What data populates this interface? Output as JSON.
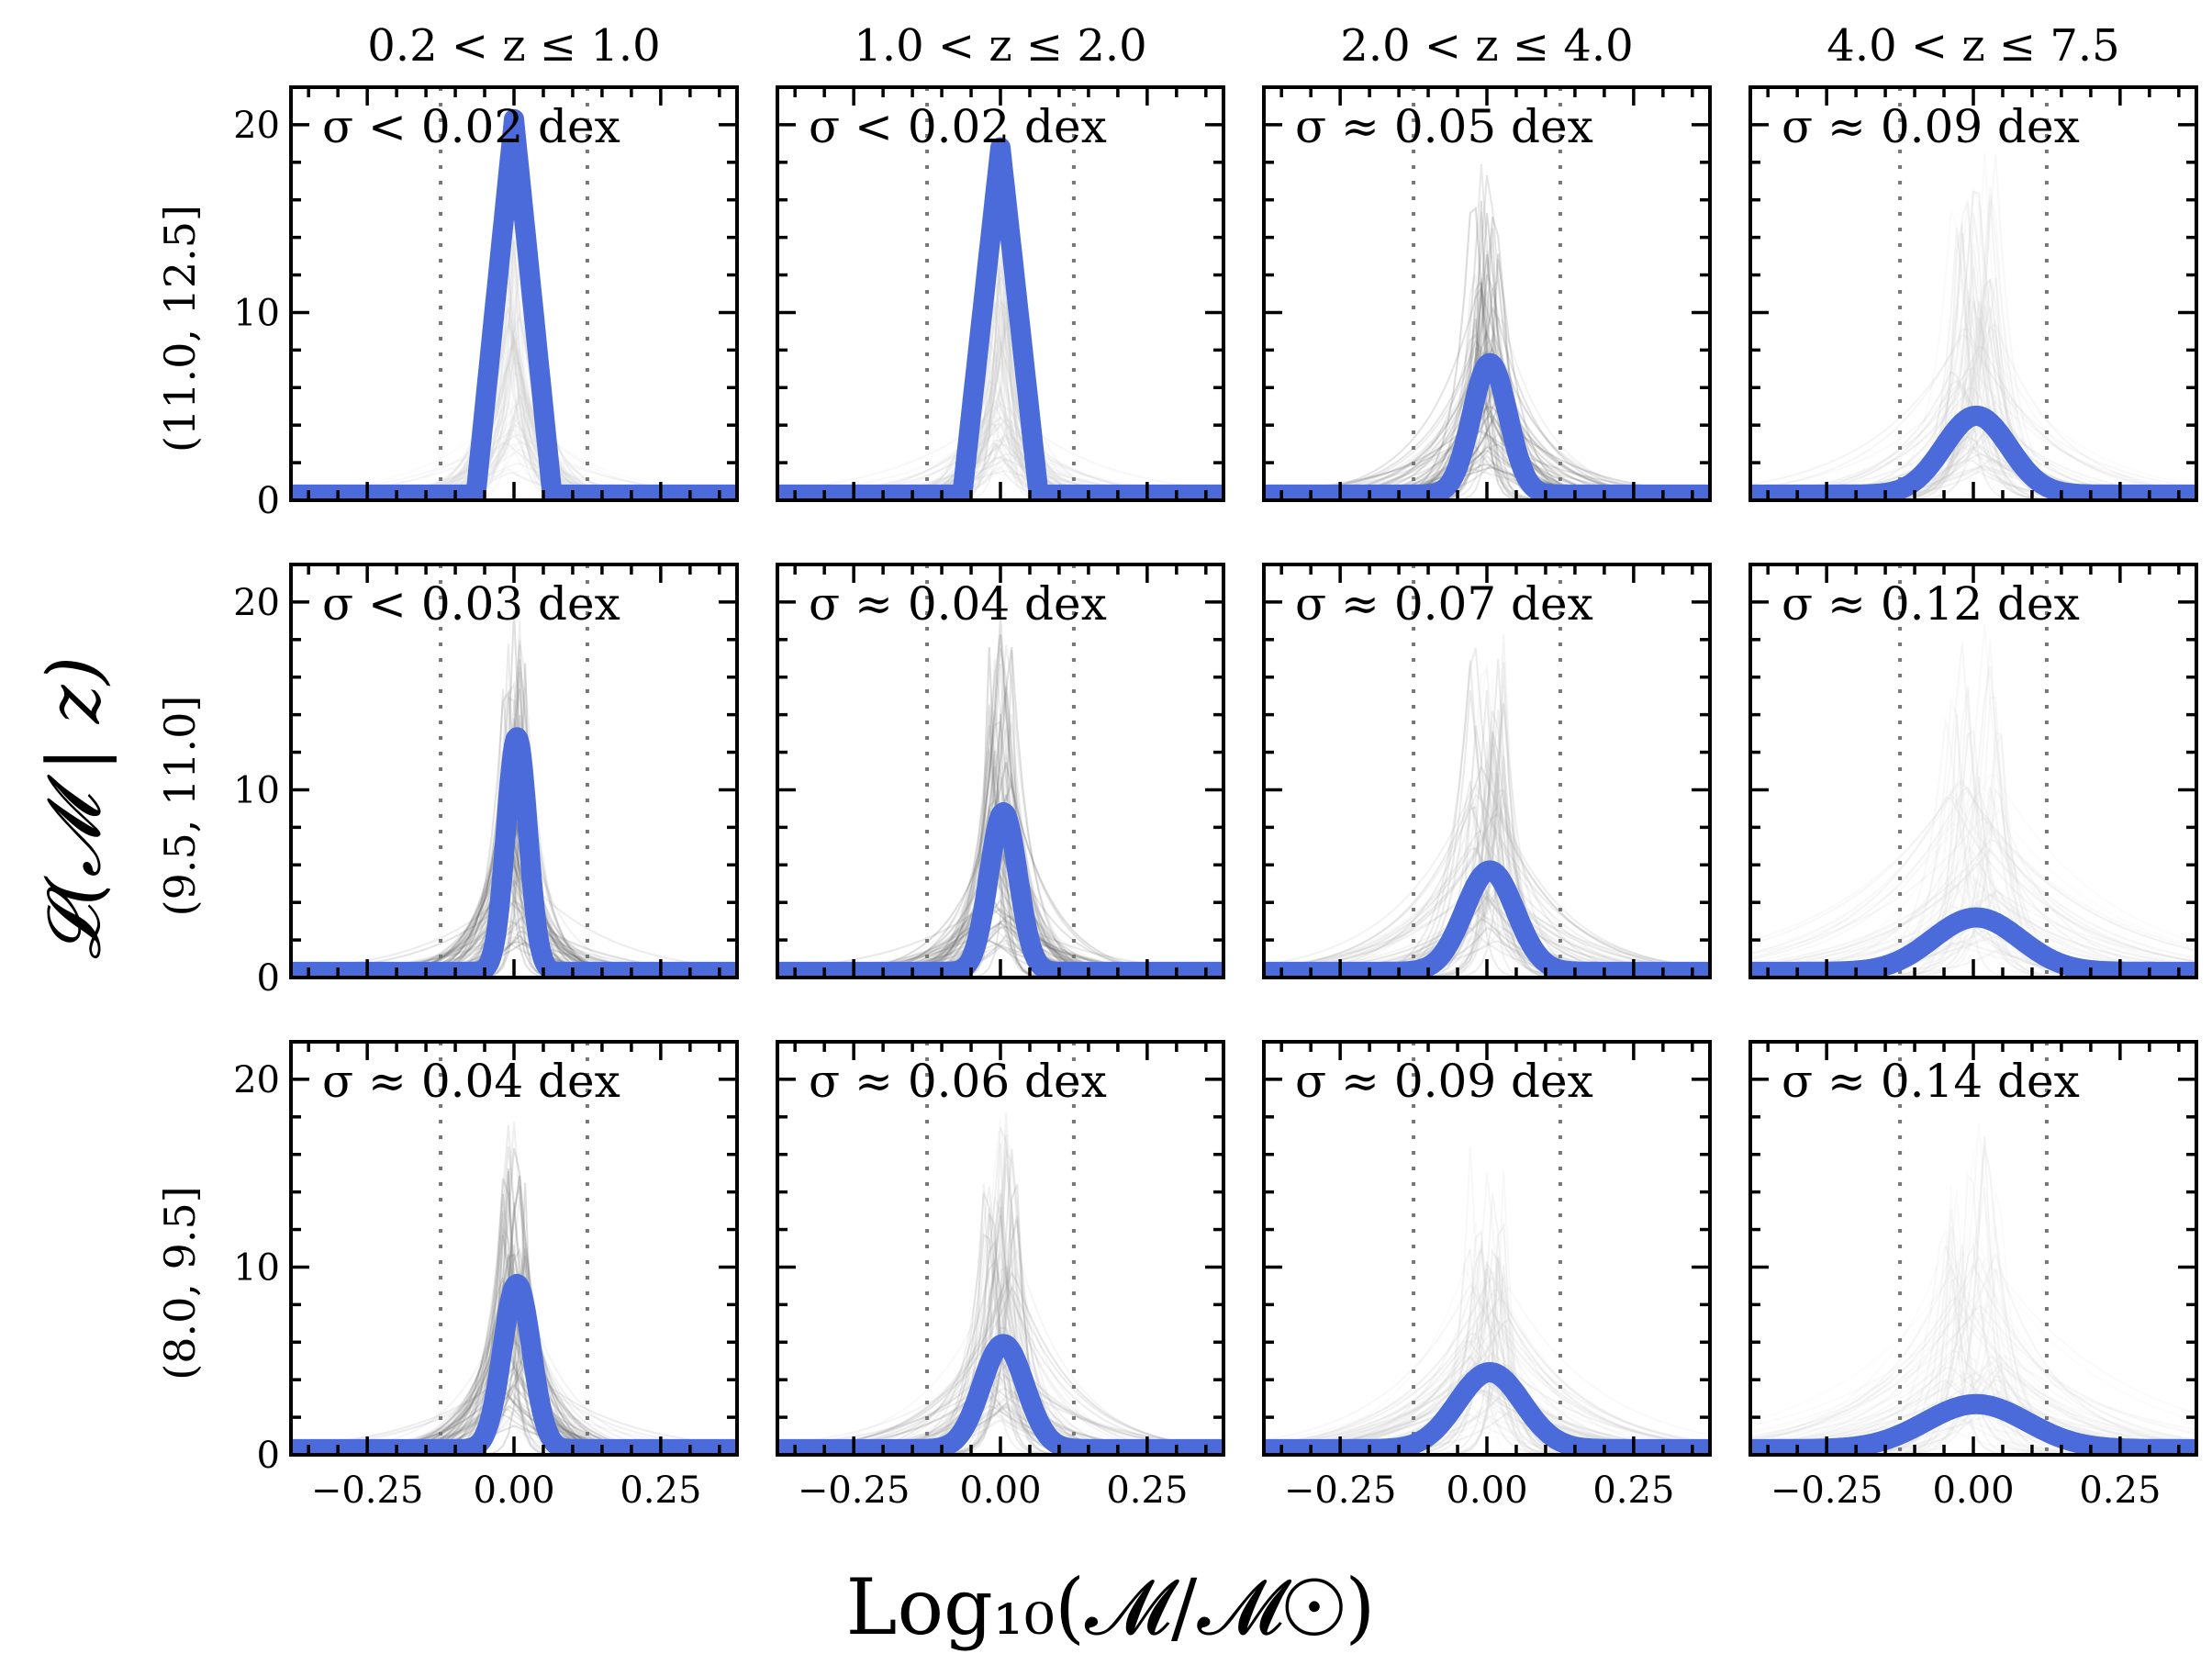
{
  "colors": {
    "main_curve": "#4a6bd9",
    "bundle": "#555555",
    "dotted_line": "#777777"
  },
  "figure": {
    "ylabel": "𝓛(𝓜 | z)",
    "xlabel": "Log₁₀(𝓜/𝓜☉)",
    "column_titles": [
      "0.2 < z ≤ 1.0",
      "1.0 < z ≤ 2.0",
      "2.0 < z ≤ 4.0",
      "4.0 < z ≤ 7.5"
    ],
    "row_labels": [
      "(11.0, 12.5]",
      "(9.5, 11.0]",
      "(8.0, 9.5]"
    ],
    "x_ticks": [
      -0.25,
      0.0,
      0.25
    ],
    "x_tick_labels": [
      "−0.25",
      "0.00",
      "0.25"
    ],
    "y_ticks": [
      0,
      10,
      20
    ],
    "y_tick_labels": [
      "0",
      "10",
      "20"
    ]
  },
  "chart_data": {
    "type": "line",
    "layout": "grid 3 rows × 4 columns",
    "xlim": [
      -0.38,
      0.38
    ],
    "ylim": [
      0,
      22
    ],
    "vertical_dotted_lines_x": [
      -0.125,
      0.125
    ],
    "panels": [
      {
        "row": 0,
        "col": 0,
        "annotation": "σ < 0.02 dex",
        "sigma": 0.02,
        "peak": 20,
        "shape": "triangle",
        "halfwidth": 0.065,
        "bundle_peak": 20,
        "bundle_opacity": 0.3
      },
      {
        "row": 0,
        "col": 1,
        "annotation": "σ < 0.02 dex",
        "sigma": 0.02,
        "peak": 18.5,
        "shape": "triangle",
        "halfwidth": 0.065,
        "bundle_peak": 18,
        "bundle_opacity": 0.35
      },
      {
        "row": 0,
        "col": 2,
        "annotation": "σ ≈ 0.05 dex",
        "sigma": 0.05,
        "peak": 7,
        "shape": "gaussian",
        "bundle_peak": 19.5,
        "bundle_opacity": 0.9
      },
      {
        "row": 0,
        "col": 3,
        "annotation": "σ ≈ 0.09 dex",
        "sigma": 0.09,
        "peak": 4.2,
        "shape": "gaussian",
        "bundle_peak": 19.5,
        "bundle_opacity": 0.35
      },
      {
        "row": 1,
        "col": 0,
        "annotation": "σ < 0.03 dex",
        "sigma": 0.03,
        "peak": 12.5,
        "shape": "gaussian",
        "bundle_peak": 20,
        "bundle_opacity": 0.9
      },
      {
        "row": 1,
        "col": 1,
        "annotation": "σ ≈ 0.04 dex",
        "sigma": 0.04,
        "peak": 8.5,
        "shape": "gaussian",
        "bundle_peak": 19.5,
        "bundle_opacity": 0.85
      },
      {
        "row": 1,
        "col": 2,
        "annotation": "σ ≈ 0.07 dex",
        "sigma": 0.07,
        "peak": 5.4,
        "shape": "gaussian",
        "bundle_peak": 19.5,
        "bundle_opacity": 0.5
      },
      {
        "row": 1,
        "col": 3,
        "annotation": "σ ≈ 0.12 dex",
        "sigma": 0.12,
        "peak": 2.9,
        "shape": "gaussian",
        "bundle_peak": 19.5,
        "bundle_opacity": 0.25
      },
      {
        "row": 2,
        "col": 0,
        "annotation": "σ ≈ 0.04 dex",
        "sigma": 0.04,
        "peak": 8.8,
        "shape": "gaussian",
        "bundle_peak": 19.5,
        "bundle_opacity": 0.85
      },
      {
        "row": 2,
        "col": 1,
        "annotation": "σ ≈ 0.06 dex",
        "sigma": 0.06,
        "peak": 5.6,
        "shape": "gaussian",
        "bundle_peak": 19.5,
        "bundle_opacity": 0.6
      },
      {
        "row": 2,
        "col": 2,
        "annotation": "σ ≈ 0.09 dex",
        "sigma": 0.09,
        "peak": 4.1,
        "shape": "gaussian",
        "bundle_peak": 17.5,
        "bundle_opacity": 0.35
      },
      {
        "row": 2,
        "col": 3,
        "annotation": "σ ≈ 0.14 dex",
        "sigma": 0.14,
        "peak": 2.4,
        "shape": "gaussian",
        "bundle_peak": 19.5,
        "bundle_opacity": 0.25
      }
    ]
  }
}
